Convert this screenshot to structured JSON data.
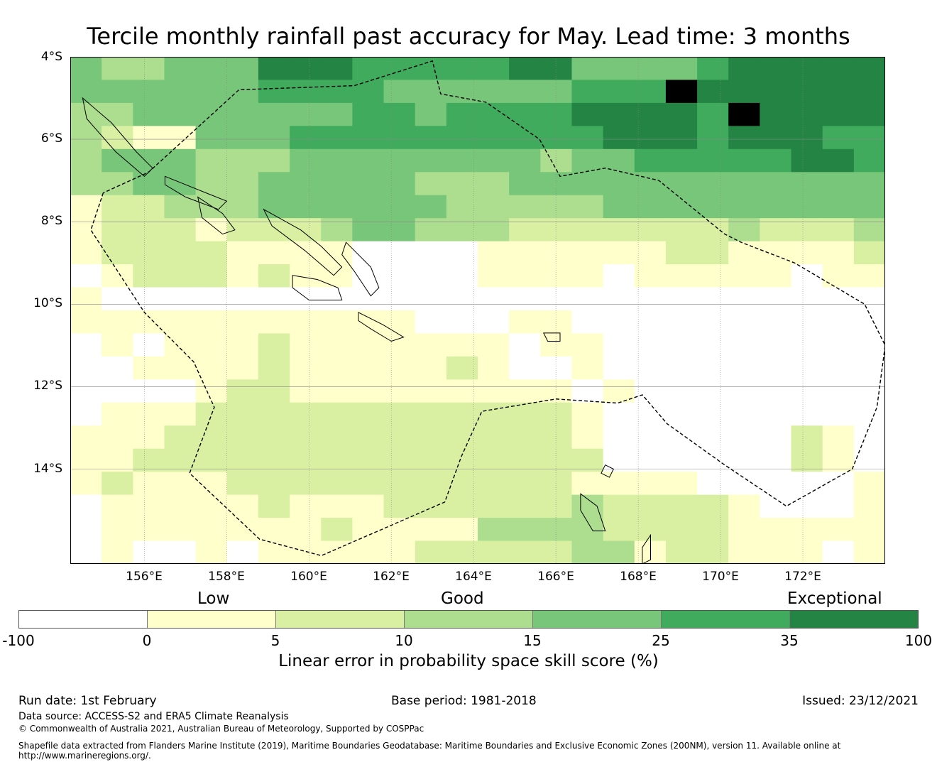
{
  "title": "Tercile monthly rainfall past accuracy for May. Lead time: 3 months",
  "map": {
    "lon_min": 154.2,
    "lon_max": 174,
    "lat_top": -4,
    "lat_bottom": -16.3,
    "cell_deg": 0.83,
    "lat_labels": [
      "4°S",
      "6°S",
      "8°S",
      "10°S",
      "12°S",
      "14°S"
    ],
    "lat_values": [
      -4,
      -6,
      -8,
      -10,
      -12,
      -14
    ],
    "lon_labels": [
      "156°E",
      "158°E",
      "160°E",
      "162°E",
      "164°E",
      "166°E",
      "168°E",
      "170°E",
      "172°E"
    ],
    "lon_values": [
      156,
      158,
      160,
      162,
      164,
      166,
      168,
      170,
      172
    ],
    "colors": [
      "#ffffff",
      "#ffffcc",
      "#d9f0a3",
      "#addd8e",
      "#78c679",
      "#41ab5d",
      "#238443"
    ],
    "grid_rows": [
      "43344466655555664444566666",
      "44444455554444445557666666",
      "33444444455455556666576666",
      "32114445555555555666566655",
      "34443334444444434455555665",
      "33443344444333444444444444",
      "12233344444433333444444444",
      "12221222344333222222232223",
      "12222111100001111112211112",
      "01222121100001111011111011",
      "10000000000000000000000000",
      "11111111111000110000000000",
      "01011121111111011000000000",
      "00111121111121001000000000",
      "00001221111111110100000000",
      "01112222222222221000000000",
      "11122222222222221000000210",
      "11222222222222222000000210",
      "12111222222222221111000001",
      "01111121112222223222210001",
      "01111111211113333222211111",
      "01001011111222223312211101"
    ],
    "eez_paths": [
      [
        [
          155,
          -7.3
        ],
        [
          154.7,
          -8.2
        ],
        [
          156,
          -10.2
        ],
        [
          157.2,
          -11.4
        ],
        [
          157.7,
          -12.5
        ],
        [
          157.1,
          -14.1
        ],
        [
          158.8,
          -15.7
        ],
        [
          160.3,
          -16.1
        ],
        [
          163.3,
          -14.8
        ],
        [
          163.7,
          -13.7
        ],
        [
          164.2,
          -12.6
        ],
        [
          166,
          -12.3
        ],
        [
          167.5,
          -12.4
        ],
        [
          168.1,
          -12.2
        ],
        [
          168.7,
          -12.9
        ],
        [
          170.1,
          -13.9
        ],
        [
          171.6,
          -14.9
        ],
        [
          173.2,
          -14
        ],
        [
          173.8,
          -12.5
        ],
        [
          174,
          -11
        ],
        [
          173.5,
          -10
        ],
        [
          171.8,
          -9
        ],
        [
          170.5,
          -8.5
        ],
        [
          170.1,
          -8.3
        ],
        [
          168.5,
          -7
        ],
        [
          167.2,
          -6.7
        ],
        [
          166.1,
          -6.9
        ],
        [
          165.6,
          -6
        ],
        [
          164.3,
          -5.1
        ],
        [
          163.2,
          -4.9
        ],
        [
          163,
          -4.1
        ],
        [
          161.1,
          -4.7
        ],
        [
          158.3,
          -4.8
        ],
        [
          156.1,
          -6.8
        ],
        [
          155,
          -7.3
        ]
      ]
    ],
    "islands": [
      [
        [
          154.5,
          -5.0
        ],
        [
          155.2,
          -5.6
        ],
        [
          155.8,
          -6.3
        ],
        [
          156.2,
          -6.7
        ],
        [
          156.0,
          -6.9
        ],
        [
          155.3,
          -6.3
        ],
        [
          154.6,
          -5.5
        ]
      ],
      [
        [
          156.5,
          -6.9
        ],
        [
          157.5,
          -7.3
        ],
        [
          158.0,
          -7.5
        ],
        [
          157.8,
          -7.7
        ],
        [
          157.0,
          -7.4
        ],
        [
          156.5,
          -7.1
        ]
      ],
      [
        [
          157.3,
          -7.4
        ],
        [
          157.9,
          -7.8
        ],
        [
          158.2,
          -8.2
        ],
        [
          157.9,
          -8.3
        ],
        [
          157.4,
          -7.9
        ]
      ],
      [
        [
          158.9,
          -7.7
        ],
        [
          159.8,
          -8.2
        ],
        [
          160.3,
          -8.6
        ],
        [
          160.8,
          -9.1
        ],
        [
          160.6,
          -9.3
        ],
        [
          159.9,
          -8.7
        ],
        [
          159.1,
          -8.1
        ]
      ],
      [
        [
          160.9,
          -8.5
        ],
        [
          161.5,
          -9.1
        ],
        [
          161.7,
          -9.6
        ],
        [
          161.5,
          -9.8
        ],
        [
          161.1,
          -9.2
        ],
        [
          160.8,
          -8.8
        ]
      ],
      [
        [
          159.6,
          -9.3
        ],
        [
          160.2,
          -9.4
        ],
        [
          160.7,
          -9.6
        ],
        [
          160.8,
          -9.9
        ],
        [
          160.0,
          -9.9
        ],
        [
          159.6,
          -9.6
        ]
      ],
      [
        [
          161.2,
          -10.2
        ],
        [
          161.8,
          -10.5
        ],
        [
          162.3,
          -10.8
        ],
        [
          162.0,
          -10.9
        ],
        [
          161.5,
          -10.6
        ],
        [
          161.2,
          -10.4
        ]
      ],
      [
        [
          165.7,
          -10.7
        ],
        [
          166.1,
          -10.7
        ],
        [
          166.1,
          -10.9
        ],
        [
          165.8,
          -10.9
        ]
      ],
      [
        [
          166.6,
          -14.6
        ],
        [
          167.0,
          -14.9
        ],
        [
          167.2,
          -15.5
        ],
        [
          166.9,
          -15.5
        ],
        [
          166.6,
          -15.0
        ]
      ],
      [
        [
          168.1,
          -15.9
        ],
        [
          168.3,
          -15.6
        ],
        [
          168.3,
          -16.2
        ],
        [
          168.1,
          -16.3
        ]
      ],
      [
        [
          167.2,
          -13.9
        ],
        [
          167.4,
          -14.0
        ],
        [
          167.3,
          -14.2
        ],
        [
          167.1,
          -14.1
        ]
      ]
    ]
  },
  "legend": {
    "categories": [
      "Low",
      "Good",
      "Exceptional"
    ],
    "ticks": [
      "-100",
      "0",
      "5",
      "10",
      "15",
      "25",
      "35",
      "100"
    ],
    "label": "Linear error in probability space skill score (%)"
  },
  "footer": {
    "run_date": "Run date: 1st February",
    "base_period": "Base period: 1981-2018",
    "issued": "Issued: 23/12/2021",
    "data_source": "Data source: ACCESS-S2 and ERA5 Climate Reanalysis",
    "copyright": "© Commonwealth of Australia 2021, Australian Bureau of Meteorology, Supported by COSPPac",
    "shapefile_1": "Shapefile data extracted from Flanders Marine Institute (2019), Maritime Boundaries Geodatabase: Maritime Boundaries and Exclusive Economic Zones (200NM), version 11. Available online at",
    "shapefile_2": "http://www.marineregions.org/."
  }
}
